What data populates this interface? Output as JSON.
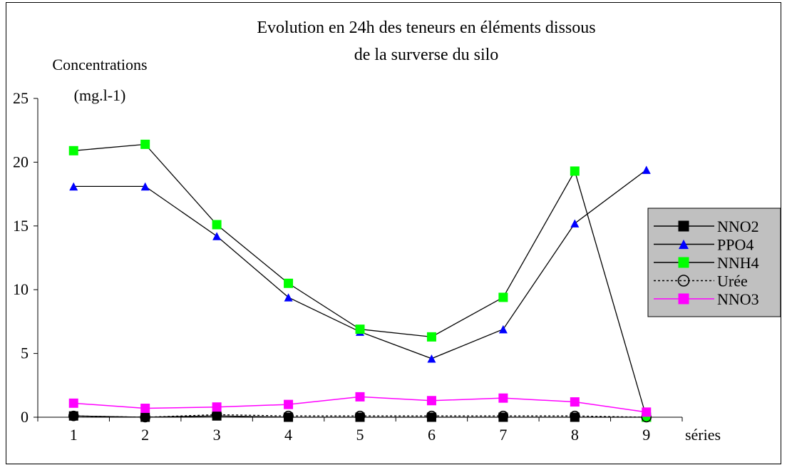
{
  "chart_data": {
    "type": "line",
    "title_line1": "Evolution en 24h des teneurs en éléments dissous",
    "title_line2": "de la surverse du silo",
    "ylabel_line1": "Concentrations",
    "ylabel_line2": "(mg.l-1)",
    "xlabel": "séries",
    "categories": [
      "1",
      "2",
      "3",
      "4",
      "5",
      "6",
      "7",
      "8",
      "9"
    ],
    "ylim": [
      0,
      25
    ],
    "yticks": [
      "0",
      "5",
      "10",
      "15",
      "20",
      "25"
    ],
    "grid": false,
    "legend_position": "right",
    "series": [
      {
        "name": "NNO2",
        "values": [
          0.1,
          0.0,
          0.1,
          0.0,
          0.0,
          0.0,
          0.0,
          0.0,
          0.0
        ],
        "color": "#000000",
        "marker": "square"
      },
      {
        "name": "PPO4",
        "values": [
          18.1,
          18.1,
          14.2,
          9.4,
          6.7,
          4.6,
          6.9,
          15.2,
          19.4
        ],
        "color": "#0000ff",
        "marker": "triangle"
      },
      {
        "name": "NNH4",
        "values": [
          20.9,
          21.4,
          15.1,
          10.5,
          6.9,
          6.3,
          9.4,
          19.3,
          0.0
        ],
        "color": "#00ff00",
        "marker": "square"
      },
      {
        "name": "Urée",
        "values": [
          0.1,
          0.0,
          0.2,
          0.1,
          0.1,
          0.1,
          0.1,
          0.1,
          0.0
        ],
        "color": "#000000",
        "marker": "circle"
      },
      {
        "name": "NNO3",
        "values": [
          1.1,
          0.7,
          0.8,
          1.0,
          1.6,
          1.3,
          1.5,
          1.2,
          0.4
        ],
        "color": "#ff00ff",
        "marker": "square"
      }
    ]
  }
}
